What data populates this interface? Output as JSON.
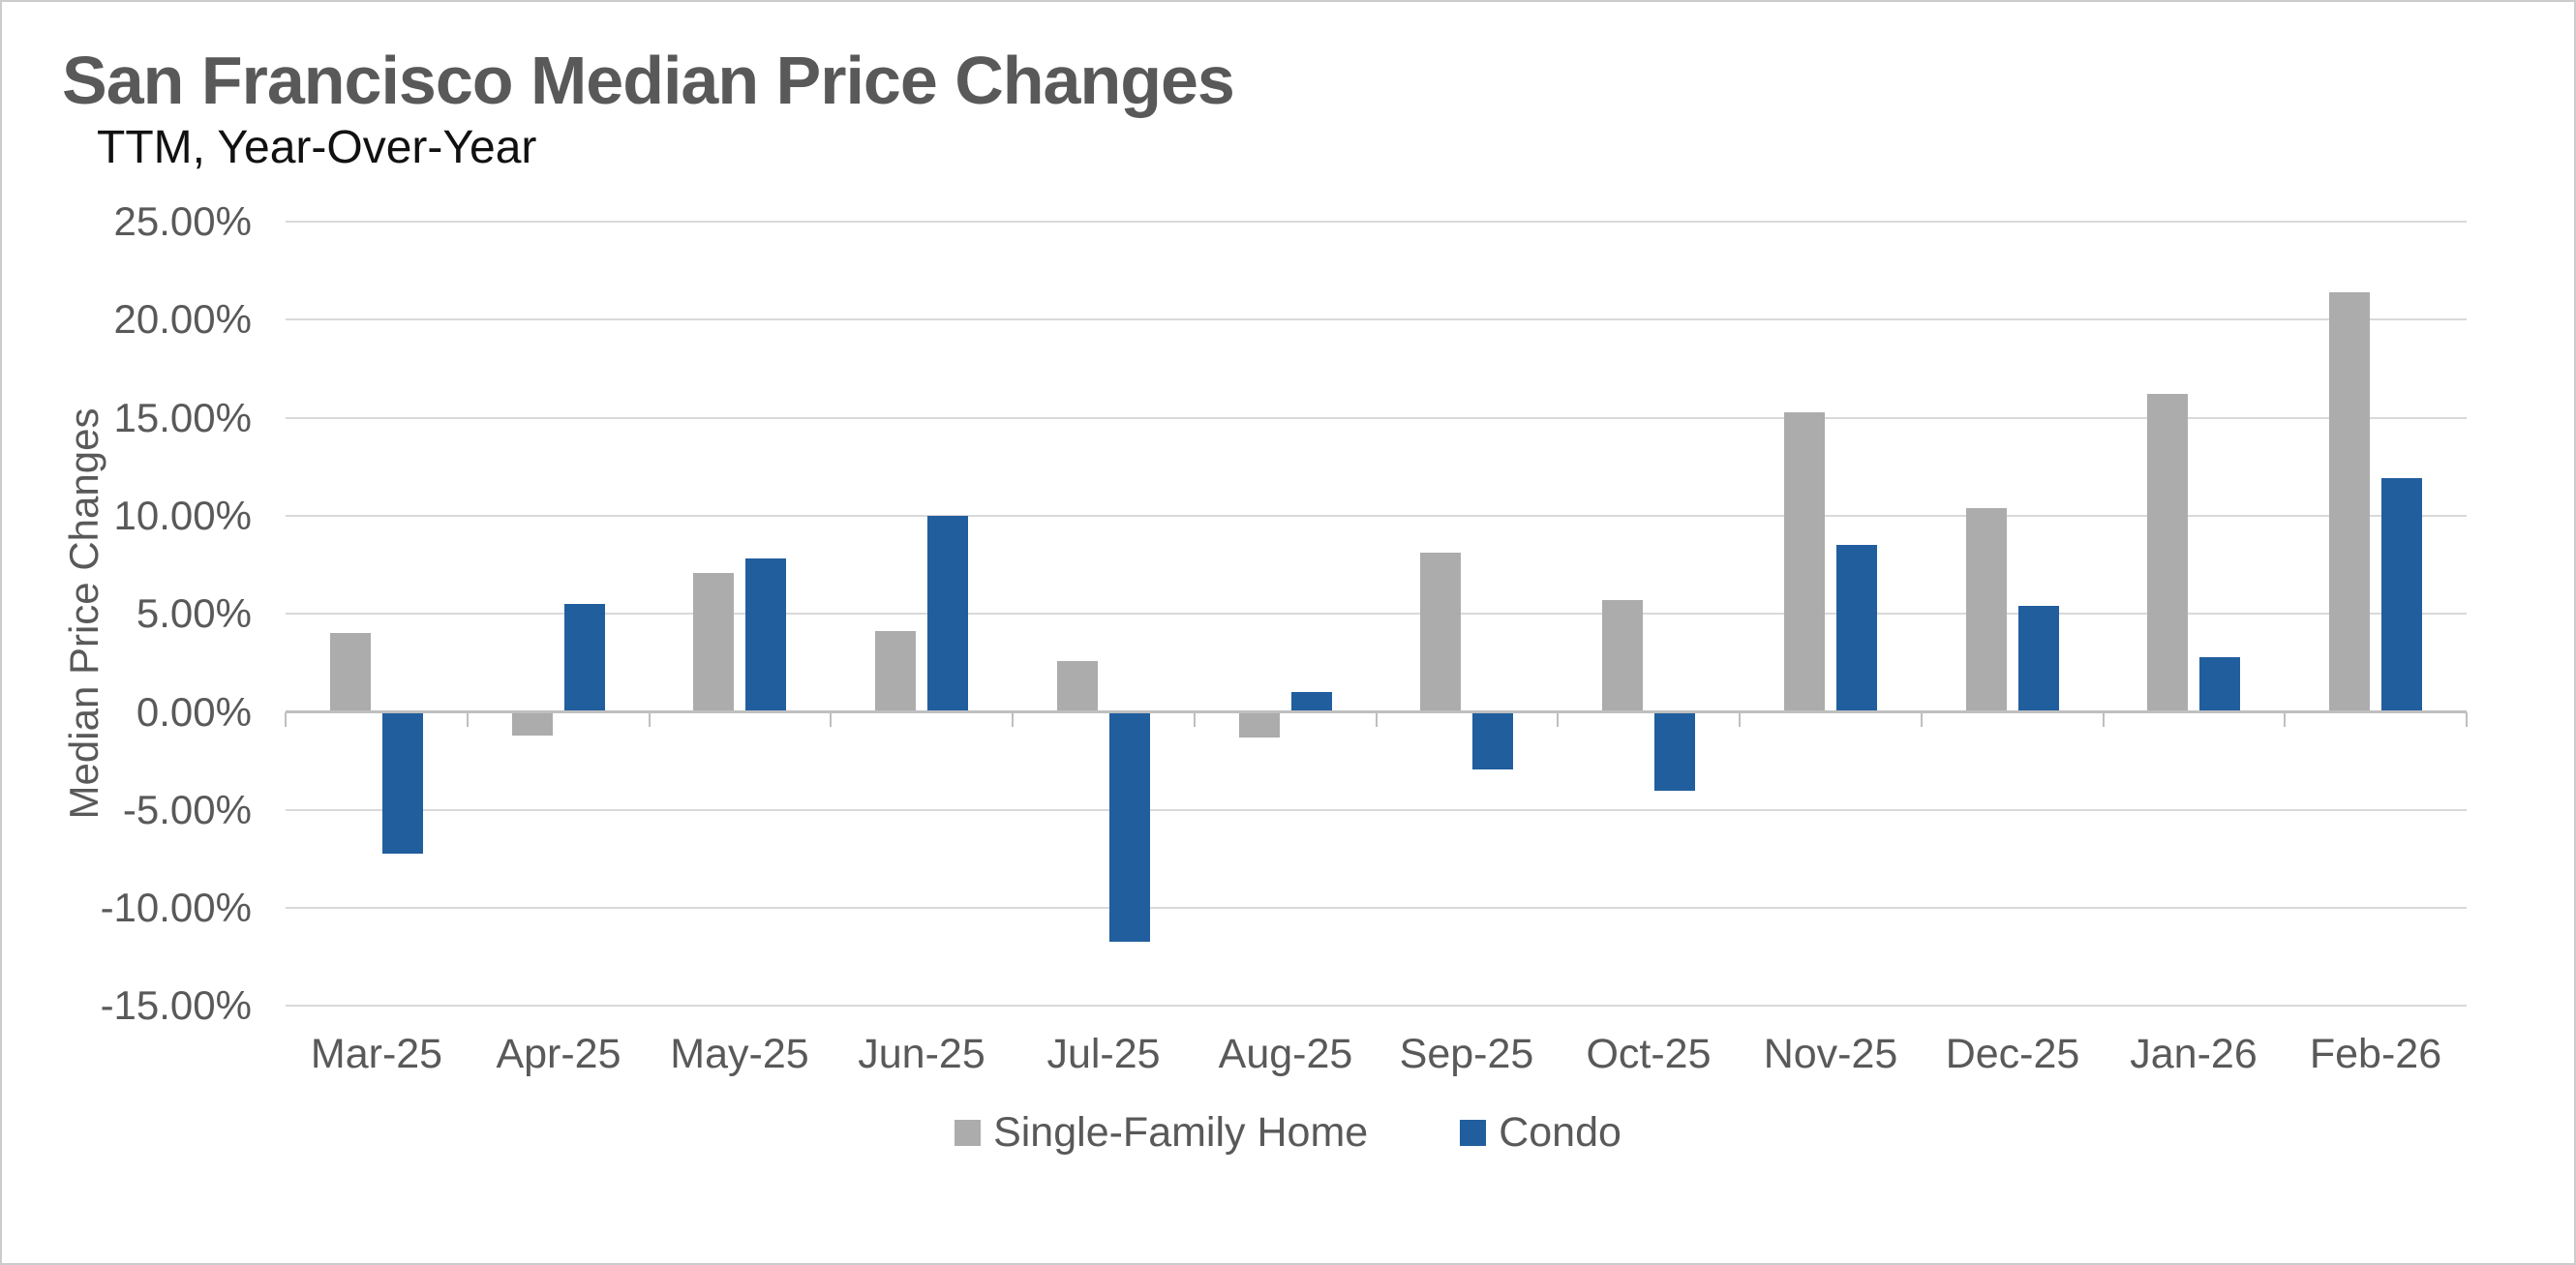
{
  "chart_data": {
    "type": "bar",
    "title": "San Francisco Median Price Changes",
    "subtitle": "TTM, Year-Over-Year",
    "ylabel": "Median Price Changes",
    "xlabel": "",
    "categories": [
      "Mar-25",
      "Apr-25",
      "May-25",
      "Jun-25",
      "Jul-25",
      "Aug-25",
      "Sep-25",
      "Oct-25",
      "Nov-25",
      "Dec-25",
      "Jan-26",
      "Feb-26"
    ],
    "series": [
      {
        "name": "Single-Family Home",
        "color": "#ACACAC",
        "values": [
          4.0,
          -1.2,
          7.1,
          4.1,
          2.6,
          -1.3,
          8.1,
          5.7,
          15.3,
          10.4,
          16.2,
          21.4
        ]
      },
      {
        "name": "Condo",
        "color": "#215E9E",
        "values": [
          -7.2,
          5.5,
          7.8,
          10.0,
          -11.7,
          1.0,
          -2.9,
          -4.0,
          8.5,
          5.4,
          2.8,
          11.9
        ]
      }
    ],
    "value_unit": "percent",
    "ylim": [
      -15,
      25
    ],
    "ytick_step": 5,
    "yticks": [
      {
        "value": 25,
        "label": "25.00%"
      },
      {
        "value": 20,
        "label": "20.00%"
      },
      {
        "value": 15,
        "label": "15.00%"
      },
      {
        "value": 10,
        "label": "10.00%"
      },
      {
        "value": 5,
        "label": "5.00%"
      },
      {
        "value": 0,
        "label": "0.00%"
      },
      {
        "value": -5,
        "label": "-5.00%"
      },
      {
        "value": -10,
        "label": "-10.00%"
      },
      {
        "value": -15,
        "label": "-15.00%"
      }
    ],
    "grid": true,
    "legend_position": "bottom",
    "legend": [
      "Single-Family Home",
      "Condo"
    ],
    "styles": {
      "background": "#FFFFFF",
      "gridline": "#D9D9D9",
      "axis_line": "#BFBFBF",
      "tick_text": "#595959",
      "title_text": "#595959",
      "subtitle_text": "#111111",
      "bar_single_family": "#ACACAC",
      "bar_condo": "#215E9E"
    }
  }
}
